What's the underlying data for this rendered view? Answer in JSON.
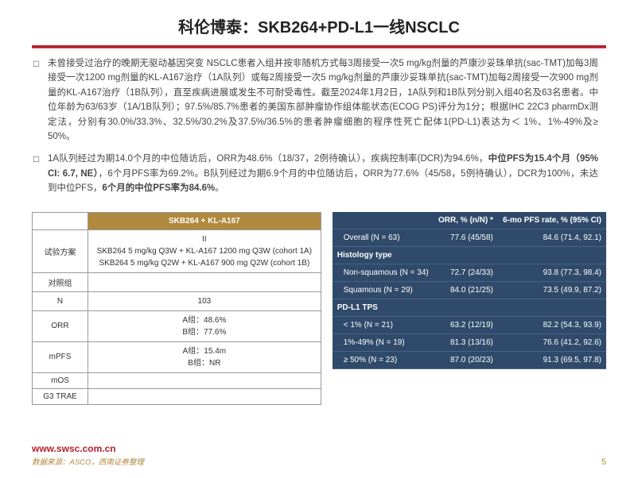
{
  "title": "科伦博泰：SKB264+PD-L1一线NSCLC",
  "bullets": [
    {
      "plain": "未曾接受过治疗的晚期无驱动基因突变 NSCLC患者入组并按非随机方式每3周接受一次5 mg/kg剂量的芦康沙妥珠单抗(sac-TMT)加每3周接受一次1200 mg剂量的KL-A167治疗（1A队列）或每2周接受一次5 mg/kg剂量的芦康沙妥珠单抗(sac-TMT)加每2周接受一次900 mg剂量的KL-A167治疗（1B队列），直至疾病进展或发生不可耐受毒性。截至2024年1月2日，1A队列和1B队列分别入组40名及63名患者。中位年龄为63/63岁（1A/1B队列）；97.5%/85.7%患者的美国东部肿瘤协作组体能状态(ECOG PS)评分为1分；根据IHC 22C3 pharmDx测定法，分别有30.0%/33.3%、32.5%/30.2%及37.5%/36.5%的患者肿瘤细胞的程序性死亡配体1(PD-L1)表达为＜ 1%、1%-49%及≥ 50%。"
    },
    {
      "pre": "1A队列经过为期14.0个月的中位随访后，ORR为48.6%（18/37，2例待确认），疾病控制率(DCR)为94.6%，",
      "bold1": "中位PFS为15.4个月（95% CI: 6.7, NE）",
      "mid": "，6个月PFS率为69.2%。B队列经过为期6.9个月的中位随访后，ORR为77.6%（45/58，5例待确认），DCR为100%，未达到中位PFS，",
      "bold2": "6个月的中位PFS率为84.6%",
      "post": "。"
    }
  ],
  "left_table": {
    "header": "SKB264 + KL-A167",
    "rows": [
      {
        "label": "试验方案",
        "value_lines": [
          "II",
          "SKB264 5 mg/kg Q3W + KL-A167 1200 mg Q3W (cohort 1A)",
          "SKB264 5 mg/kg Q2W + KL-A167 900 mg Q2W (cohort 1B)"
        ]
      },
      {
        "label": "对照组",
        "value_lines": [
          ""
        ]
      },
      {
        "label": "N",
        "value_lines": [
          "103"
        ]
      },
      {
        "label": "ORR",
        "value_lines": [
          "A组：48.6%",
          "B组：77.6%"
        ]
      },
      {
        "label": "mPFS",
        "value_lines": [
          "A组：15.4m",
          "B组：NR"
        ]
      },
      {
        "label": "mOS",
        "value_lines": [
          ""
        ]
      },
      {
        "label": "G3 TRAE",
        "value_lines": [
          ""
        ]
      }
    ]
  },
  "right_table": {
    "columns": [
      "",
      "ORR, % (n/N) *",
      "6-mo PFS rate, % (95% CI)"
    ],
    "rows": [
      {
        "type": "data",
        "cells": [
          "Overall (N = 63)",
          "77.6 (45/58)",
          "84.6 (71.4, 92.1)"
        ]
      },
      {
        "type": "section",
        "cells": [
          "Histology type",
          "",
          ""
        ]
      },
      {
        "type": "data",
        "cells": [
          "Non-squamous (N = 34)",
          "72.7 (24/33)",
          "93.8 (77.3, 98.4)"
        ]
      },
      {
        "type": "data",
        "cells": [
          "Squamous (N = 29)",
          "84.0 (21/25)",
          "73.5 (49.9, 87.2)"
        ]
      },
      {
        "type": "section",
        "cells": [
          "PD-L1 TPS",
          "",
          ""
        ]
      },
      {
        "type": "data",
        "cells": [
          "< 1% (N = 21)",
          "63.2 (12/19)",
          "82.2 (54.3, 93.9)"
        ]
      },
      {
        "type": "data",
        "cells": [
          "1%-49% (N = 19)",
          "81.3 (13/16)",
          "76.6 (41.2, 92.6)"
        ]
      },
      {
        "type": "data",
        "cells": [
          "≥ 50% (N = 23)",
          "87.0 (20/23)",
          "91.3 (69.5, 97.8)"
        ]
      }
    ]
  },
  "footer": {
    "url": "www.swsc.com.cn",
    "source": "数据来源：ASCO，西南证券整理",
    "page": "5"
  },
  "colors": {
    "accent_red": "#b7202e",
    "gold": "#b1893e",
    "navy": "#2f4a6a"
  }
}
